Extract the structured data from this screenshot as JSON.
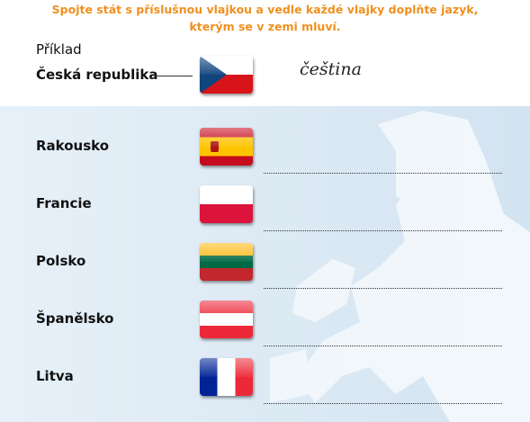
{
  "instruction": [
    "Spojte stát s příslušnou vlajkou a vedle každé vlajky doplňte jazyk,",
    "kterým se v zemi mluví."
  ],
  "example": {
    "label": "Příklad",
    "country": "Česká republika",
    "answer": "čeština"
  },
  "countries": [
    "Rakousko",
    "Francie",
    "Polsko",
    "Španělsko",
    "Litva"
  ]
}
